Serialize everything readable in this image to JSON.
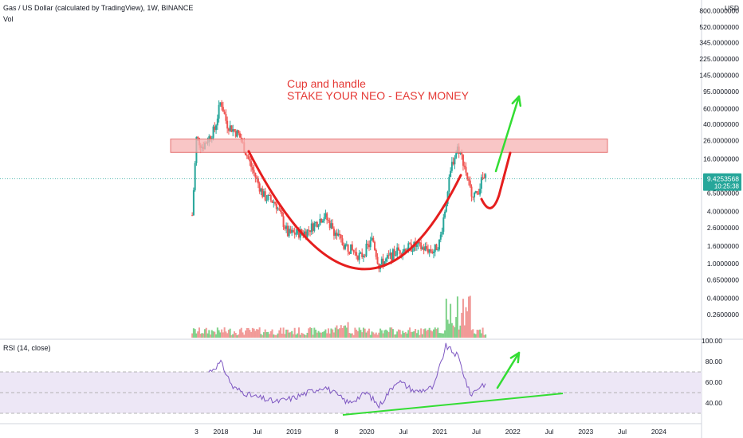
{
  "header": {
    "symbol_line": "Gas / US Dollar (calculated by TradingView), 1W, BINANCE",
    "volume_label": "Vol"
  },
  "rsi_title": "RSI (14, close)",
  "price_axis": {
    "unit": "USD",
    "scale": "log",
    "ticks": [
      "800.0000000",
      "520.0000000",
      "345.0000000",
      "225.0000000",
      "145.0000000",
      "95.0000000",
      "60.0000000",
      "40.0000000",
      "26.0000000",
      "16.0000000",
      "9.4253568",
      "6.5000000",
      "4.0000000",
      "2.6000000",
      "1.6000000",
      "1.0000000",
      "0.6500000",
      "0.4000000",
      "0.2600000"
    ],
    "last_price": "9.4253568",
    "countdown": "10:25:38"
  },
  "rsi_axis": {
    "ticks": [
      "100.00",
      "80.00",
      "60.00",
      "40.00"
    ],
    "range": [
      30,
      100
    ],
    "bands": [
      30,
      70
    ]
  },
  "time_axis": {
    "ticks": [
      "3",
      "2018",
      "Jul",
      "2019",
      "8",
      "2020",
      "Jul",
      "2021",
      "Jul",
      "2022",
      "Jul",
      "2023",
      "Jul",
      "2024"
    ]
  },
  "annotations": {
    "line1": "Cup and handle",
    "line2": "STAKE YOUR NEO - EASY MONEY"
  },
  "colors": {
    "up": "#26a69a",
    "down": "#ef5350",
    "up_volume": "#7fd28a",
    "down_volume": "#f19a98",
    "annotation_text": "#e53935",
    "cup_curve": "#e51e1e",
    "arrow": "#33dd33",
    "zone_fill": "#f7b3b3",
    "rsi_line": "#7e57c2",
    "rsi_band": "#ede7f6"
  },
  "chart_data": [
    {
      "type": "candlestick",
      "title": "Gas / US Dollar (calculated by TradingView), 1W, BINANCE",
      "y_scale": "log",
      "resistance_zone": [
        19,
        27
      ],
      "series_approx_close": [
        [
          "2017-08",
          1.5
        ],
        [
          "2017-09",
          28
        ],
        [
          "2017-10",
          22
        ],
        [
          "2017-12",
          35
        ],
        [
          "2018-01",
          75
        ],
        [
          "2018-02",
          40
        ],
        [
          "2018-04",
          30
        ],
        [
          "2018-06",
          13
        ],
        [
          "2018-08",
          6
        ],
        [
          "2018-10",
          5
        ],
        [
          "2018-12",
          2.2
        ],
        [
          "2019-03",
          2.3
        ],
        [
          "2019-06",
          3.6
        ],
        [
          "2019-09",
          1.7
        ],
        [
          "2019-12",
          1.2
        ],
        [
          "2020-02",
          1.9
        ],
        [
          "2020-03",
          0.95
        ],
        [
          "2020-06",
          1.4
        ],
        [
          "2020-09",
          1.6
        ],
        [
          "2020-12",
          1.4
        ],
        [
          "2021-01",
          1.8
        ],
        [
          "2021-03",
          14
        ],
        [
          "2021-04",
          22
        ],
        [
          "2021-05",
          14
        ],
        [
          "2021-06",
          7
        ],
        [
          "2021-07",
          6
        ],
        [
          "2021-08",
          9.43
        ]
      ]
    },
    {
      "type": "line",
      "title": "RSI (14, close)",
      "ylim": [
        30,
        100
      ],
      "series_approx": [
        [
          "2017-11",
          70
        ],
        [
          "2018-01",
          79
        ],
        [
          "2018-03",
          55
        ],
        [
          "2018-06",
          47
        ],
        [
          "2018-10",
          41
        ],
        [
          "2019-01",
          45
        ],
        [
          "2019-06",
          56
        ],
        [
          "2019-10",
          40
        ],
        [
          "2020-01",
          50
        ],
        [
          "2020-03",
          37
        ],
        [
          "2020-06",
          62
        ],
        [
          "2020-09",
          51
        ],
        [
          "2020-12",
          55
        ],
        [
          "2021-02",
          95
        ],
        [
          "2021-04",
          85
        ],
        [
          "2021-06",
          48
        ],
        [
          "2021-08",
          58
        ]
      ]
    }
  ]
}
